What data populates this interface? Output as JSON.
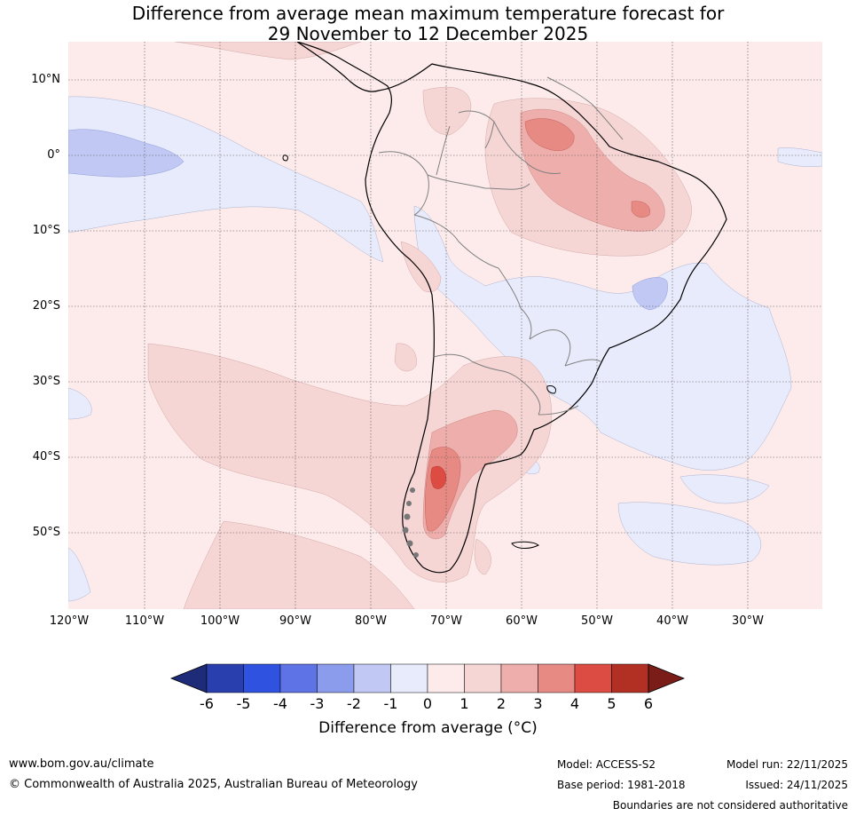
{
  "title": {
    "line1": "Difference from average mean maximum temperature forecast for",
    "line2": "29 November to 12 December 2025"
  },
  "map": {
    "lat_labels": [
      "10°N",
      "0°",
      "10°S",
      "20°S",
      "30°S",
      "40°S",
      "50°S"
    ],
    "lon_labels": [
      "120°W",
      "110°W",
      "100°W",
      "90°W",
      "80°W",
      "70°W",
      "60°W",
      "50°W",
      "40°W",
      "30°W"
    ]
  },
  "colorbar": {
    "ticks": [
      "-6",
      "-5",
      "-4",
      "-3",
      "-2",
      "-1",
      "0",
      "1",
      "2",
      "3",
      "4",
      "5",
      "6"
    ],
    "colors": [
      "#2a3fae",
      "#3052e0",
      "#5d73e6",
      "#8b9ced",
      "#c0c8f3",
      "#e8ebfb",
      "#fcebea",
      "#f6d5d5",
      "#eeafac",
      "#e88a84",
      "#dc4c42",
      "#b22f24"
    ],
    "low_arrow_color": "#1d2b78",
    "high_arrow_color": "#7a1d18",
    "title": "Difference from average (°C)"
  },
  "footer": {
    "url": "www.bom.gov.au/climate",
    "copyright": "© Commonwealth of Australia 2025, Australian Bureau of Meteorology",
    "model": "Model: ACCESS-S2",
    "base_period": "Base period: 1981-2018",
    "model_run": "Model run: 22/11/2025",
    "issued": "Issued: 24/11/2025",
    "disclaimer": "Boundaries are not considered authoritative"
  }
}
